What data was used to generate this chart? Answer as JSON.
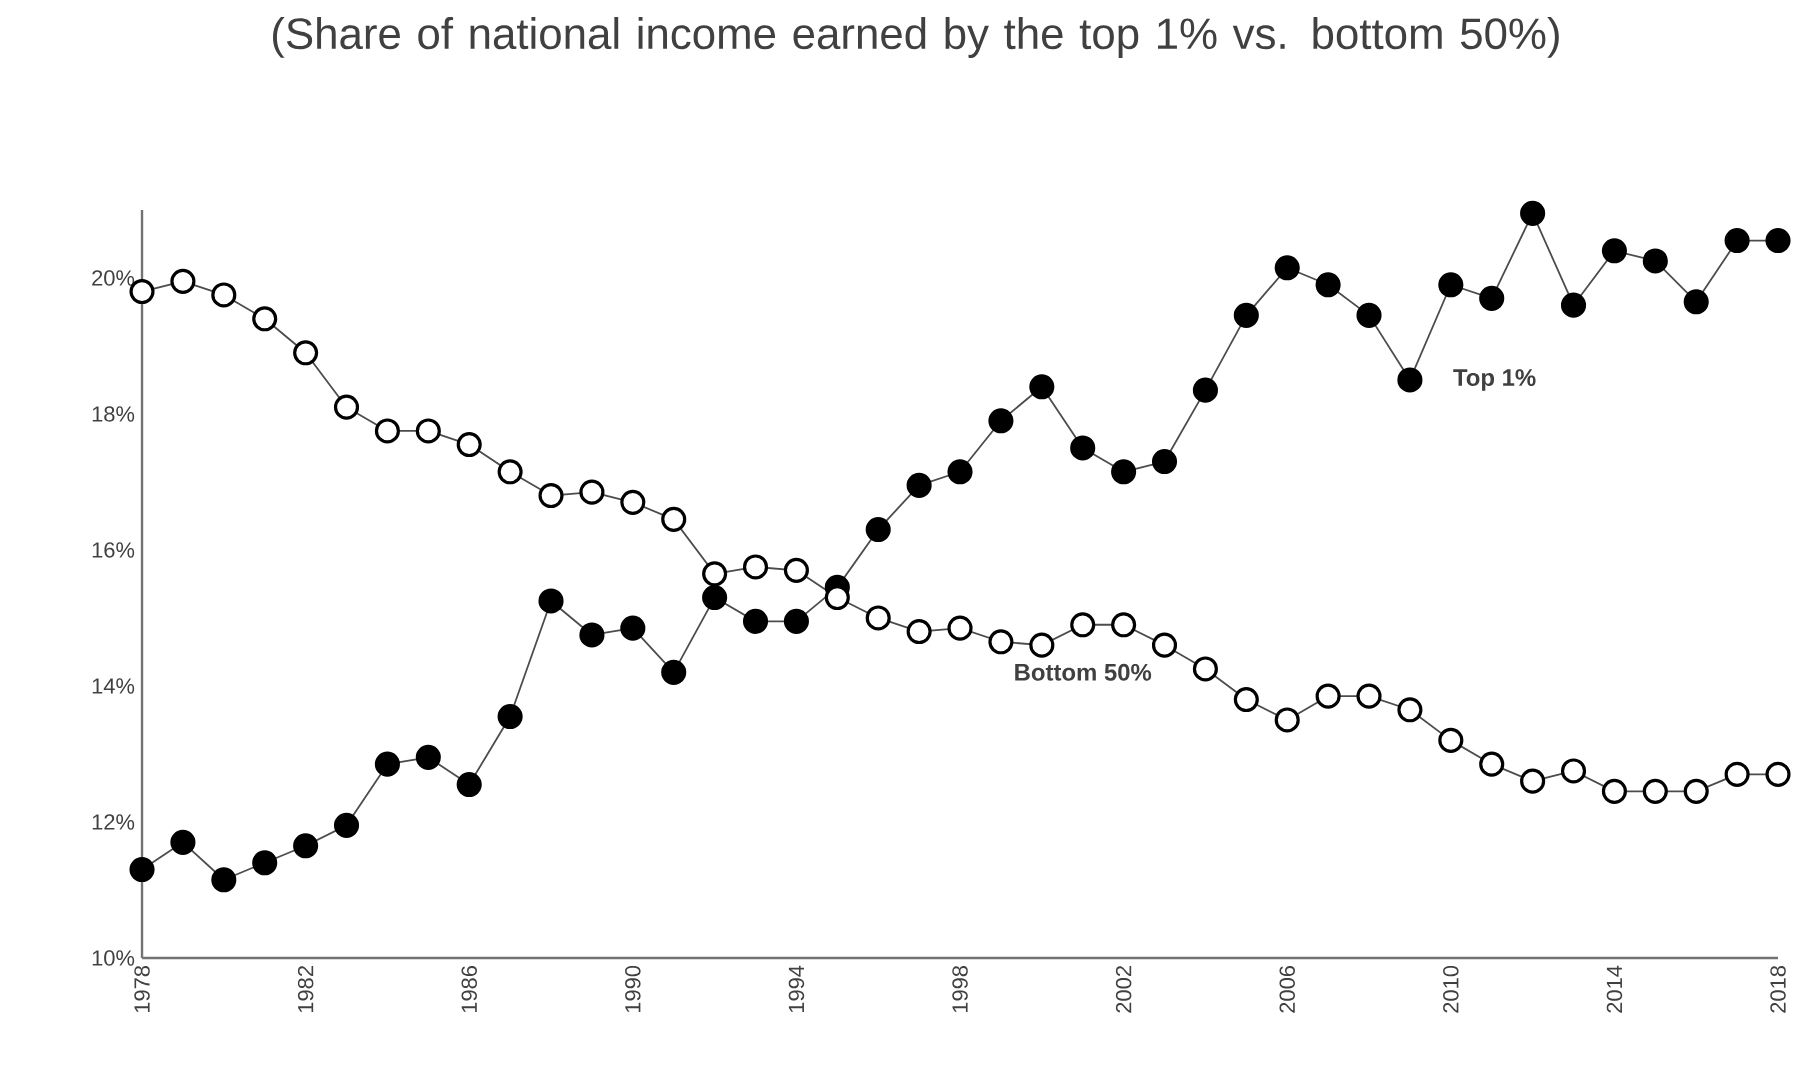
{
  "chart_data": {
    "type": "line",
    "title": "(Share of national income earned by the top 1% vs. bottom 50%)",
    "x": [
      1978,
      1979,
      1980,
      1981,
      1982,
      1983,
      1984,
      1985,
      1986,
      1987,
      1988,
      1989,
      1990,
      1991,
      1992,
      1993,
      1994,
      1995,
      1996,
      1997,
      1998,
      1999,
      2000,
      2001,
      2002,
      2003,
      2004,
      2005,
      2006,
      2007,
      2008,
      2009,
      2010,
      2011,
      2012,
      2013,
      2014,
      2015,
      2016,
      2017,
      2018
    ],
    "series": [
      {
        "name": "Top 1%",
        "color": "#000000",
        "values": [
          11.3,
          11.7,
          11.15,
          11.4,
          11.65,
          11.95,
          12.85,
          12.95,
          12.55,
          13.55,
          15.25,
          14.75,
          14.85,
          14.2,
          15.3,
          14.95,
          14.95,
          15.45,
          16.3,
          16.95,
          17.15,
          17.9,
          18.4,
          17.5,
          17.15,
          17.3,
          18.35,
          19.45,
          20.15,
          19.9,
          19.45,
          18.5,
          19.9,
          19.7,
          20.95,
          19.6,
          20.4,
          20.25,
          19.65,
          20.55,
          20.55
        ]
      },
      {
        "name": "Bottom 50%",
        "color": "#ffffff",
        "values": [
          19.8,
          19.95,
          19.75,
          19.4,
          18.9,
          18.1,
          17.75,
          17.75,
          17.55,
          17.15,
          16.8,
          16.85,
          16.7,
          16.45,
          15.65,
          15.75,
          15.7,
          15.3,
          15.0,
          14.8,
          14.85,
          14.65,
          14.6,
          14.9,
          14.9,
          14.6,
          14.25,
          13.8,
          13.5,
          13.85,
          13.85,
          13.65,
          13.2,
          12.85,
          12.6,
          12.75,
          12.45,
          12.45,
          12.45,
          12.7,
          12.7
        ]
      }
    ],
    "xlim": [
      1978,
      2018
    ],
    "xticks": [
      1978,
      1982,
      1986,
      1990,
      1994,
      1998,
      2002,
      2006,
      2010,
      2014,
      2018
    ],
    "ylim": [
      10,
      21
    ],
    "yticks": [
      {
        "value": 10,
        "label": "10%"
      },
      {
        "value": 12,
        "label": "12%"
      },
      {
        "value": 14,
        "label": "14%"
      },
      {
        "value": 16,
        "label": "16%"
      },
      {
        "value": 18,
        "label": "18%"
      },
      {
        "value": 20,
        "label": "20%"
      }
    ],
    "grid": false,
    "legend": false,
    "marker": "circle",
    "line_style": "solid"
  }
}
